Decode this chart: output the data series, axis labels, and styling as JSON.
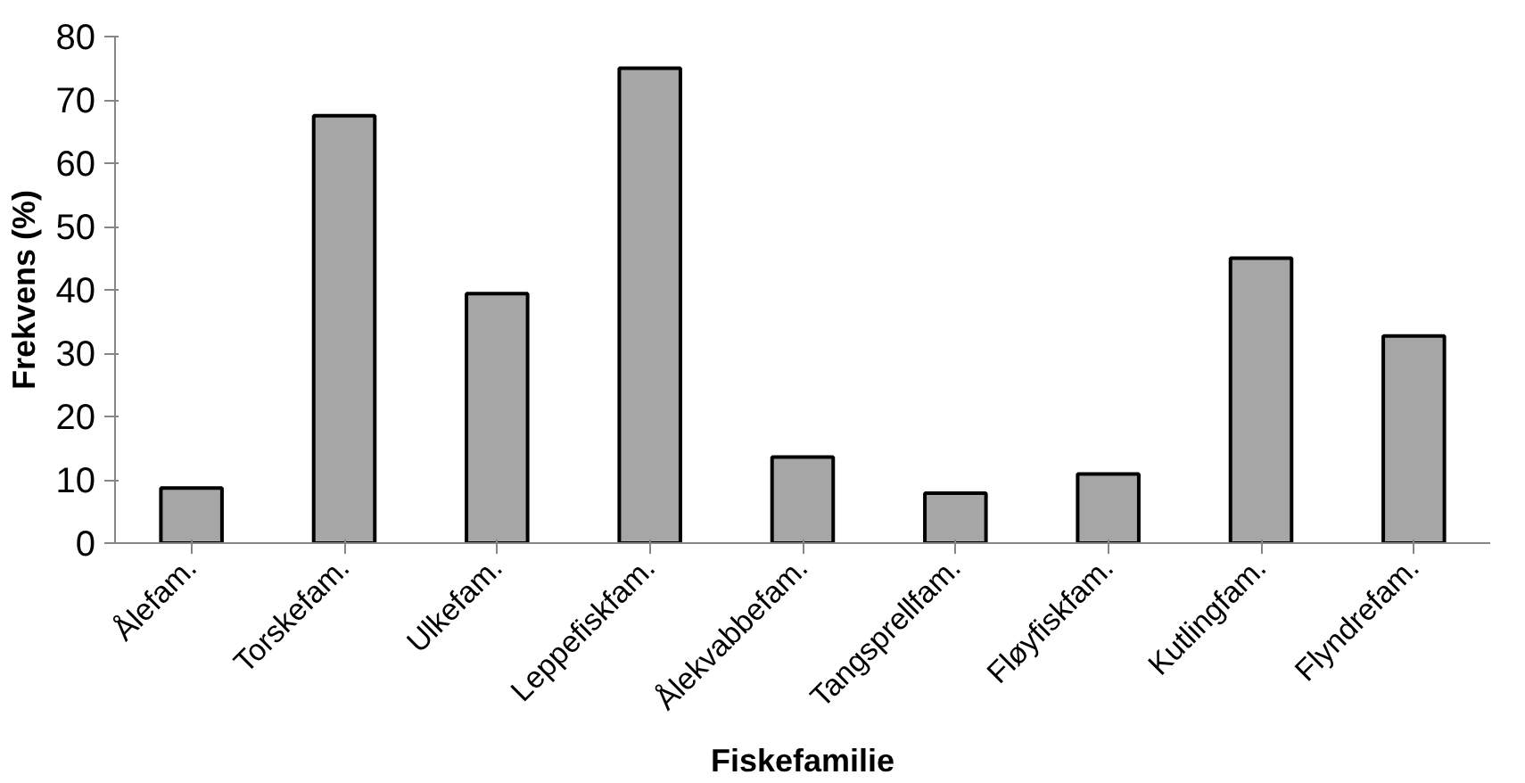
{
  "chart_data": {
    "type": "bar",
    "xlabel": "Fiskefamilie",
    "ylabel": "Frekvens (%)",
    "categories": [
      "Ålefam.",
      "Torskefam.",
      "Ulkefam.",
      "Leppefiskfam.",
      "Ålekvabbefam.",
      "Tangsprellfam.",
      "Fløyfiskfam.",
      "Kutlingfam.",
      "Flyndrefam."
    ],
    "values": [
      8.7,
      67.5,
      39.4,
      75.0,
      13.6,
      7.9,
      10.9,
      45.0,
      32.7
    ],
    "color": "#a6a6a6",
    "ylim": [
      0,
      80
    ],
    "yticks": [
      0,
      10,
      20,
      30,
      40,
      50,
      60,
      70,
      80
    ],
    "grid": false
  }
}
